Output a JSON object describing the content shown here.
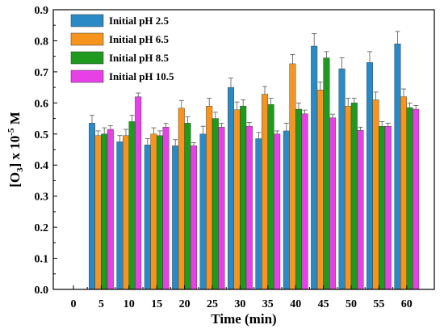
{
  "chart_data": {
    "type": "bar",
    "xlabel": "Time (min)",
    "ylabel": {
      "main": "[O",
      "sub": "3",
      "mid": "] x 10",
      "sup": "-5",
      "end": " M"
    },
    "ylim": [
      0,
      0.9
    ],
    "yticks": [
      0.0,
      0.1,
      0.2,
      0.3,
      0.4,
      0.5,
      0.6,
      0.7,
      0.8,
      0.9
    ],
    "ytick_labels": [
      "0.0",
      "0.1",
      "0.2",
      "0.3",
      "0.4",
      "0.5",
      "0.6",
      "0.7",
      "0.8",
      "0.9"
    ],
    "categories": [
      "0",
      "5",
      "10",
      "15",
      "20",
      "25",
      "30",
      "35",
      "40",
      "45",
      "50",
      "55",
      "60"
    ],
    "grid": false,
    "legend_position": "top-left",
    "series": [
      {
        "name": "Initial pH 2.5",
        "color": "#2a8ac6",
        "values": [
          null,
          0.535,
          0.475,
          0.465,
          0.462,
          0.5,
          0.65,
          0.485,
          0.51,
          0.783,
          0.71,
          0.73,
          0.79
        ],
        "errors": [
          null,
          0.025,
          0.02,
          0.02,
          0.02,
          0.025,
          0.03,
          0.02,
          0.025,
          0.04,
          0.035,
          0.035,
          0.04
        ]
      },
      {
        "name": "Initial pH 6.5",
        "color": "#f7941d",
        "values": [
          null,
          0.495,
          0.495,
          0.5,
          0.583,
          0.59,
          0.578,
          0.628,
          0.726,
          0.642,
          0.59,
          0.61,
          0.62
        ],
        "errors": [
          null,
          0.015,
          0.02,
          0.02,
          0.025,
          0.025,
          0.025,
          0.025,
          0.03,
          0.025,
          0.025,
          0.025,
          0.025
        ]
      },
      {
        "name": "Initial pH 8.5",
        "color": "#1e9a1e",
        "values": [
          null,
          0.5,
          0.54,
          0.495,
          0.535,
          0.55,
          0.59,
          0.595,
          0.58,
          0.745,
          0.6,
          0.525,
          0.585
        ],
        "errors": [
          null,
          0.02,
          0.02,
          0.015,
          0.02,
          0.02,
          0.02,
          0.02,
          0.02,
          0.02,
          0.015,
          0.015,
          0.015
        ]
      },
      {
        "name": "Initial pH 10.5",
        "color": "#e640e6",
        "values": [
          null,
          0.515,
          0.62,
          0.522,
          0.462,
          0.522,
          0.525,
          0.5,
          0.565,
          0.552,
          0.512,
          0.525,
          0.58
        ],
        "errors": [
          null,
          0.012,
          0.012,
          0.012,
          0.01,
          0.012,
          0.012,
          0.01,
          0.012,
          0.012,
          0.01,
          0.01,
          0.012
        ]
      }
    ]
  }
}
